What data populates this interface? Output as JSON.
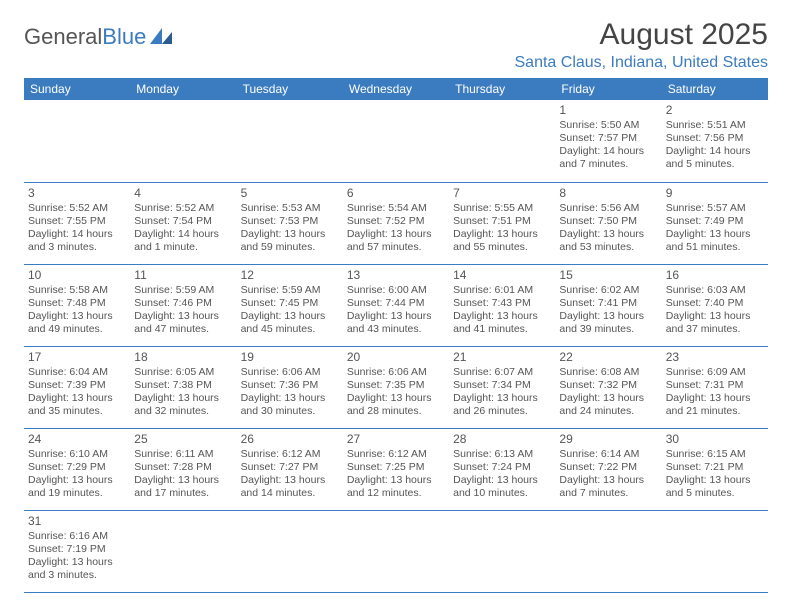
{
  "brand": {
    "general": "General",
    "blue": "Blue"
  },
  "title": "August 2025",
  "location": "Santa Claus, Indiana, United States",
  "colors": {
    "accent": "#3b7bbf",
    "text": "#555555",
    "bg": "#ffffff"
  },
  "weekdays": [
    "Sunday",
    "Monday",
    "Tuesday",
    "Wednesday",
    "Thursday",
    "Friday",
    "Saturday"
  ],
  "weeks": [
    [
      null,
      null,
      null,
      null,
      null,
      {
        "n": "1",
        "sr": "Sunrise: 5:50 AM",
        "ss": "Sunset: 7:57 PM",
        "dl": "Daylight: 14 hours and 7 minutes."
      },
      {
        "n": "2",
        "sr": "Sunrise: 5:51 AM",
        "ss": "Sunset: 7:56 PM",
        "dl": "Daylight: 14 hours and 5 minutes."
      }
    ],
    [
      {
        "n": "3",
        "sr": "Sunrise: 5:52 AM",
        "ss": "Sunset: 7:55 PM",
        "dl": "Daylight: 14 hours and 3 minutes."
      },
      {
        "n": "4",
        "sr": "Sunrise: 5:52 AM",
        "ss": "Sunset: 7:54 PM",
        "dl": "Daylight: 14 hours and 1 minute."
      },
      {
        "n": "5",
        "sr": "Sunrise: 5:53 AM",
        "ss": "Sunset: 7:53 PM",
        "dl": "Daylight: 13 hours and 59 minutes."
      },
      {
        "n": "6",
        "sr": "Sunrise: 5:54 AM",
        "ss": "Sunset: 7:52 PM",
        "dl": "Daylight: 13 hours and 57 minutes."
      },
      {
        "n": "7",
        "sr": "Sunrise: 5:55 AM",
        "ss": "Sunset: 7:51 PM",
        "dl": "Daylight: 13 hours and 55 minutes."
      },
      {
        "n": "8",
        "sr": "Sunrise: 5:56 AM",
        "ss": "Sunset: 7:50 PM",
        "dl": "Daylight: 13 hours and 53 minutes."
      },
      {
        "n": "9",
        "sr": "Sunrise: 5:57 AM",
        "ss": "Sunset: 7:49 PM",
        "dl": "Daylight: 13 hours and 51 minutes."
      }
    ],
    [
      {
        "n": "10",
        "sr": "Sunrise: 5:58 AM",
        "ss": "Sunset: 7:48 PM",
        "dl": "Daylight: 13 hours and 49 minutes."
      },
      {
        "n": "11",
        "sr": "Sunrise: 5:59 AM",
        "ss": "Sunset: 7:46 PM",
        "dl": "Daylight: 13 hours and 47 minutes."
      },
      {
        "n": "12",
        "sr": "Sunrise: 5:59 AM",
        "ss": "Sunset: 7:45 PM",
        "dl": "Daylight: 13 hours and 45 minutes."
      },
      {
        "n": "13",
        "sr": "Sunrise: 6:00 AM",
        "ss": "Sunset: 7:44 PM",
        "dl": "Daylight: 13 hours and 43 minutes."
      },
      {
        "n": "14",
        "sr": "Sunrise: 6:01 AM",
        "ss": "Sunset: 7:43 PM",
        "dl": "Daylight: 13 hours and 41 minutes."
      },
      {
        "n": "15",
        "sr": "Sunrise: 6:02 AM",
        "ss": "Sunset: 7:41 PM",
        "dl": "Daylight: 13 hours and 39 minutes."
      },
      {
        "n": "16",
        "sr": "Sunrise: 6:03 AM",
        "ss": "Sunset: 7:40 PM",
        "dl": "Daylight: 13 hours and 37 minutes."
      }
    ],
    [
      {
        "n": "17",
        "sr": "Sunrise: 6:04 AM",
        "ss": "Sunset: 7:39 PM",
        "dl": "Daylight: 13 hours and 35 minutes."
      },
      {
        "n": "18",
        "sr": "Sunrise: 6:05 AM",
        "ss": "Sunset: 7:38 PM",
        "dl": "Daylight: 13 hours and 32 minutes."
      },
      {
        "n": "19",
        "sr": "Sunrise: 6:06 AM",
        "ss": "Sunset: 7:36 PM",
        "dl": "Daylight: 13 hours and 30 minutes."
      },
      {
        "n": "20",
        "sr": "Sunrise: 6:06 AM",
        "ss": "Sunset: 7:35 PM",
        "dl": "Daylight: 13 hours and 28 minutes."
      },
      {
        "n": "21",
        "sr": "Sunrise: 6:07 AM",
        "ss": "Sunset: 7:34 PM",
        "dl": "Daylight: 13 hours and 26 minutes."
      },
      {
        "n": "22",
        "sr": "Sunrise: 6:08 AM",
        "ss": "Sunset: 7:32 PM",
        "dl": "Daylight: 13 hours and 24 minutes."
      },
      {
        "n": "23",
        "sr": "Sunrise: 6:09 AM",
        "ss": "Sunset: 7:31 PM",
        "dl": "Daylight: 13 hours and 21 minutes."
      }
    ],
    [
      {
        "n": "24",
        "sr": "Sunrise: 6:10 AM",
        "ss": "Sunset: 7:29 PM",
        "dl": "Daylight: 13 hours and 19 minutes."
      },
      {
        "n": "25",
        "sr": "Sunrise: 6:11 AM",
        "ss": "Sunset: 7:28 PM",
        "dl": "Daylight: 13 hours and 17 minutes."
      },
      {
        "n": "26",
        "sr": "Sunrise: 6:12 AM",
        "ss": "Sunset: 7:27 PM",
        "dl": "Daylight: 13 hours and 14 minutes."
      },
      {
        "n": "27",
        "sr": "Sunrise: 6:12 AM",
        "ss": "Sunset: 7:25 PM",
        "dl": "Daylight: 13 hours and 12 minutes."
      },
      {
        "n": "28",
        "sr": "Sunrise: 6:13 AM",
        "ss": "Sunset: 7:24 PM",
        "dl": "Daylight: 13 hours and 10 minutes."
      },
      {
        "n": "29",
        "sr": "Sunrise: 6:14 AM",
        "ss": "Sunset: 7:22 PM",
        "dl": "Daylight: 13 hours and 7 minutes."
      },
      {
        "n": "30",
        "sr": "Sunrise: 6:15 AM",
        "ss": "Sunset: 7:21 PM",
        "dl": "Daylight: 13 hours and 5 minutes."
      }
    ],
    [
      {
        "n": "31",
        "sr": "Sunrise: 6:16 AM",
        "ss": "Sunset: 7:19 PM",
        "dl": "Daylight: 13 hours and 3 minutes."
      },
      null,
      null,
      null,
      null,
      null,
      null
    ]
  ]
}
